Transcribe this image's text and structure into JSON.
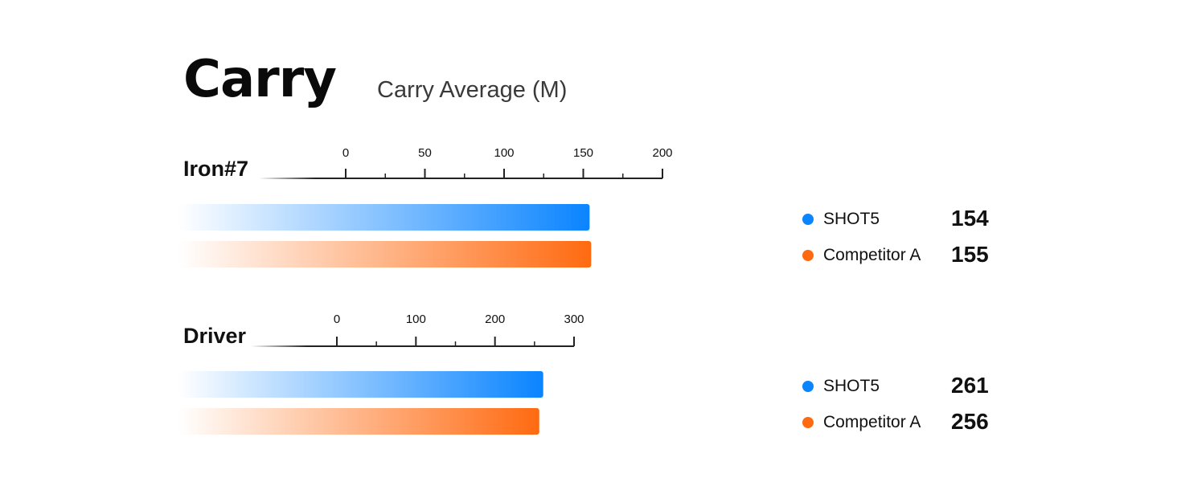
{
  "header": {
    "title": "Carry",
    "subtitle": "Carry Average (M)"
  },
  "colors": {
    "shot5": "#0a84ff",
    "competitor_a": "#ff6a10"
  },
  "chart_data": [
    {
      "type": "bar",
      "orientation": "horizontal",
      "title": "Iron#7",
      "categories": [
        "Iron#7"
      ],
      "series": [
        {
          "name": "SHOT5",
          "values": [
            154
          ]
        },
        {
          "name": "Competitor A",
          "values": [
            155
          ]
        }
      ],
      "xlim": [
        0,
        200
      ],
      "ticks": [
        0,
        50,
        100,
        150,
        200
      ],
      "tick_labels": [
        "0",
        "50",
        "100",
        "150",
        "200"
      ],
      "grid": false,
      "legend_position": "right",
      "legend": [
        {
          "name": "SHOT5",
          "value": "154"
        },
        {
          "name": "Competitor A",
          "value": "155"
        }
      ]
    },
    {
      "type": "bar",
      "orientation": "horizontal",
      "title": "Driver",
      "categories": [
        "Driver"
      ],
      "series": [
        {
          "name": "SHOT5",
          "values": [
            261
          ]
        },
        {
          "name": "Competitor A",
          "values": [
            256
          ]
        }
      ],
      "xlim": [
        0,
        300
      ],
      "ticks": [
        0,
        100,
        200,
        300
      ],
      "tick_labels": [
        "0",
        "100",
        "200",
        "300"
      ],
      "grid": false,
      "legend_position": "right",
      "legend": [
        {
          "name": "SHOT5",
          "value": "261"
        },
        {
          "name": "Competitor A",
          "value": "256"
        }
      ]
    }
  ]
}
